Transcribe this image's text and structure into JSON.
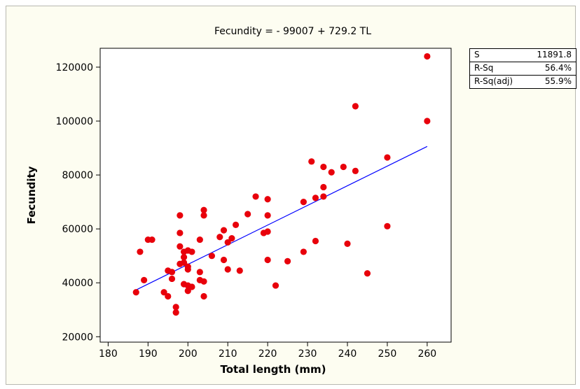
{
  "chart_data": {
    "type": "scatter",
    "title": "Fecundity =  - 99007 + 729.2 TL",
    "xlabel": "Total length (mm)",
    "ylabel": "Fecundity",
    "xlim": [
      178,
      266
    ],
    "ylim": [
      18000,
      127000
    ],
    "x_ticks": [
      180,
      190,
      200,
      210,
      220,
      230,
      240,
      250,
      260
    ],
    "y_ticks": [
      20000,
      40000,
      60000,
      80000,
      100000,
      120000
    ],
    "x_tick_labels": [
      "180",
      "190",
      "200",
      "210",
      "220",
      "230",
      "240",
      "250",
      "260"
    ],
    "y_tick_labels": [
      "20000",
      "40000",
      "60000",
      "80000",
      "100000",
      "120000"
    ],
    "grid": false,
    "point_color": "#e8000b",
    "line_color": "#0000ff",
    "fit_line": {
      "intercept": -99007,
      "slope": 729.2,
      "x_range": [
        187,
        260
      ]
    },
    "points": [
      {
        "x": 187,
        "y": 36500
      },
      {
        "x": 188,
        "y": 51500
      },
      {
        "x": 189,
        "y": 41000
      },
      {
        "x": 190,
        "y": 56000
      },
      {
        "x": 191,
        "y": 56000
      },
      {
        "x": 194,
        "y": 36500
      },
      {
        "x": 195,
        "y": 44500
      },
      {
        "x": 195,
        "y": 35000
      },
      {
        "x": 196,
        "y": 44000
      },
      {
        "x": 196,
        "y": 41500
      },
      {
        "x": 197,
        "y": 31000
      },
      {
        "x": 197,
        "y": 29000
      },
      {
        "x": 198,
        "y": 65000
      },
      {
        "x": 198,
        "y": 58500
      },
      {
        "x": 198,
        "y": 53500
      },
      {
        "x": 198,
        "y": 47000
      },
      {
        "x": 199,
        "y": 51500
      },
      {
        "x": 199,
        "y": 49500
      },
      {
        "x": 199,
        "y": 47500
      },
      {
        "x": 199,
        "y": 39500
      },
      {
        "x": 200,
        "y": 52000
      },
      {
        "x": 200,
        "y": 46000
      },
      {
        "x": 200,
        "y": 45000
      },
      {
        "x": 200,
        "y": 39000
      },
      {
        "x": 200,
        "y": 37000
      },
      {
        "x": 201,
        "y": 51500
      },
      {
        "x": 201,
        "y": 38500
      },
      {
        "x": 203,
        "y": 56000
      },
      {
        "x": 203,
        "y": 44000
      },
      {
        "x": 203,
        "y": 41000
      },
      {
        "x": 204,
        "y": 67000
      },
      {
        "x": 204,
        "y": 65000
      },
      {
        "x": 204,
        "y": 40500
      },
      {
        "x": 204,
        "y": 35000
      },
      {
        "x": 206,
        "y": 50000
      },
      {
        "x": 208,
        "y": 57000
      },
      {
        "x": 209,
        "y": 59500
      },
      {
        "x": 209,
        "y": 48500
      },
      {
        "x": 210,
        "y": 55000
      },
      {
        "x": 210,
        "y": 45000
      },
      {
        "x": 211,
        "y": 56500
      },
      {
        "x": 212,
        "y": 61500
      },
      {
        "x": 213,
        "y": 44500
      },
      {
        "x": 215,
        "y": 65500
      },
      {
        "x": 217,
        "y": 72000
      },
      {
        "x": 219,
        "y": 58500
      },
      {
        "x": 220,
        "y": 71000
      },
      {
        "x": 220,
        "y": 65000
      },
      {
        "x": 220,
        "y": 59000
      },
      {
        "x": 220,
        "y": 48500
      },
      {
        "x": 222,
        "y": 39000
      },
      {
        "x": 225,
        "y": 48000
      },
      {
        "x": 229,
        "y": 70000
      },
      {
        "x": 229,
        "y": 51500
      },
      {
        "x": 231,
        "y": 85000
      },
      {
        "x": 232,
        "y": 71500
      },
      {
        "x": 232,
        "y": 55500
      },
      {
        "x": 234,
        "y": 83000
      },
      {
        "x": 234,
        "y": 75500
      },
      {
        "x": 234,
        "y": 72000
      },
      {
        "x": 236,
        "y": 81000
      },
      {
        "x": 239,
        "y": 83000
      },
      {
        "x": 240,
        "y": 54500
      },
      {
        "x": 242,
        "y": 105500
      },
      {
        "x": 242,
        "y": 81500
      },
      {
        "x": 245,
        "y": 43500
      },
      {
        "x": 250,
        "y": 86500
      },
      {
        "x": 250,
        "y": 61000
      },
      {
        "x": 260,
        "y": 124000
      },
      {
        "x": 260,
        "y": 100000
      }
    ]
  },
  "stats": [
    {
      "label": "S",
      "value": "11891.8"
    },
    {
      "label": "R-Sq",
      "value": "56.4%"
    },
    {
      "label": "R-Sq(adj)",
      "value": "55.9%"
    }
  ]
}
